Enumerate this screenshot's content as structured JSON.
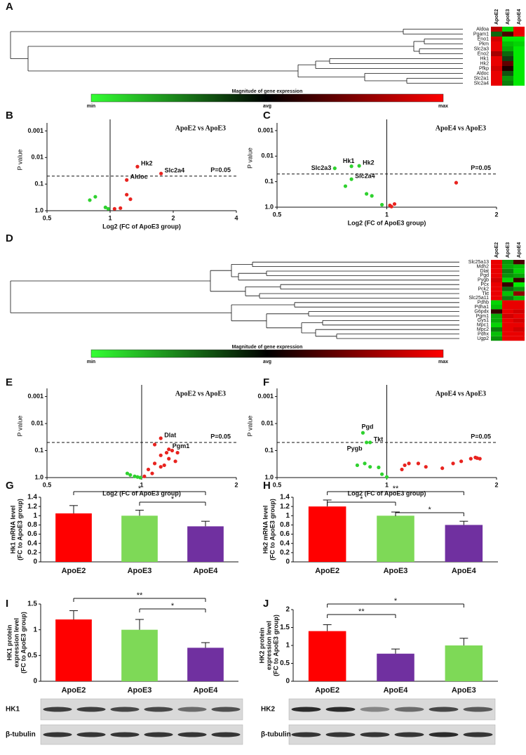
{
  "chart_data": [
    {
      "type": "heatmap",
      "panel": "A",
      "columns": [
        "ApoE2",
        "ApoE3",
        "ApoE4"
      ],
      "rows": [
        "Aldoa",
        "Pgam1",
        "Eno1",
        "Pkm",
        "Slc2a3",
        "Eno2",
        "Hk1",
        "Hk2",
        "Pfkp",
        "Aldoc",
        "Slc2a1",
        "Slc2a4"
      ],
      "values": [
        [
          0.7,
          -0.8,
          0.9
        ],
        [
          -0.3,
          0.2,
          0.9
        ],
        [
          0.8,
          -0.9,
          -0.9
        ],
        [
          0.9,
          -0.7,
          -0.8
        ],
        [
          0.9,
          -0.6,
          -0.9
        ],
        [
          0.6,
          -0.3,
          -0.9
        ],
        [
          0.9,
          -0.1,
          -0.9
        ],
        [
          0.9,
          0.3,
          -0.9
        ],
        [
          0.8,
          0,
          -0.9
        ],
        [
          0.9,
          -0.2,
          -0.9
        ],
        [
          0.9,
          -0.5,
          -0.9
        ],
        [
          0.9,
          -0.4,
          -0.9
        ]
      ],
      "colorbar": {
        "title": "Magnitude of gene expression",
        "labels": [
          "min",
          "avg",
          "max"
        ]
      }
    },
    {
      "type": "scatter",
      "panel": "B",
      "title": "ApoE2 vs ApoE3",
      "xlabel": "Log2 (FC of ApoE3 group)",
      "ylabel": "P value",
      "xscale": "log",
      "yscale": "log",
      "xlim": [
        0.5,
        4
      ],
      "xticks": [
        0.5,
        1,
        2,
        4
      ],
      "ylim": [
        1,
        0.0005
      ],
      "yticks": [
        0.001,
        0.01,
        0.1,
        {
          "value": 1,
          "label": "1.0"
        }
      ],
      "vline": 1,
      "threshold": {
        "value": 0.05,
        "label": "P=0.05"
      },
      "series": [
        {
          "color": "#e8231f",
          "x": [
            1.35,
            1.75,
            1.2,
            1.2,
            1.25,
            1.12,
            1.05
          ],
          "values": [
            0.022,
            0.04,
            0.07,
            0.25,
            0.37,
            0.8,
            0.85
          ],
          "labels": [
            "Hk2",
            "Slc2a4",
            "Aldoc",
            null,
            null,
            null,
            null
          ]
        },
        {
          "color": "#2fd12f",
          "x": [
            0.85,
            0.8,
            0.95,
            0.98
          ],
          "values": [
            0.3,
            0.4,
            0.75,
            0.85
          ]
        }
      ]
    },
    {
      "type": "scatter",
      "panel": "C",
      "title": "ApoE4 vs ApoE3",
      "xlabel": "Log2 (FC of ApoE3 group)",
      "ylabel": "P value",
      "xscale": "log",
      "yscale": "log",
      "xlim": [
        0.5,
        2
      ],
      "xticks": [
        0.5,
        1,
        2
      ],
      "ylim": [
        1,
        0.0005
      ],
      "yticks": [
        0.001,
        0.01,
        0.1,
        {
          "value": 1,
          "label": "1.0"
        }
      ],
      "vline": 1,
      "threshold": {
        "value": 0.05,
        "label": "P=0.05"
      },
      "series": [
        {
          "color": "#2fd12f",
          "x": [
            0.72,
            0.8,
            0.84,
            0.8,
            0.77,
            0.88,
            0.91,
            0.97
          ],
          "values": [
            0.03,
            0.025,
            0.024,
            0.08,
            0.15,
            0.3,
            0.36,
            0.8
          ],
          "labels": [
            "Slc2a3",
            "Hk1",
            "Hk2",
            "Slc2a4",
            null,
            null,
            null,
            null
          ]
        },
        {
          "color": "#e8231f",
          "x": [
            1.02,
            1.05,
            1.03,
            1.55
          ],
          "values": [
            0.85,
            0.75,
            0.95,
            0.11
          ]
        }
      ]
    },
    {
      "type": "heatmap",
      "panel": "D",
      "columns": [
        "ApoE2",
        "ApoE3",
        "ApoE4"
      ],
      "rows": [
        "Slc25a13",
        "Mdh2",
        "Dlat",
        "Pgd",
        "Pygb",
        "Pcx",
        "Pck2",
        "Tkt",
        "Slc25a11",
        "Pdhb",
        "Pdha1",
        "G6pdx",
        "Pgm1",
        "Gys1",
        "Mpc1",
        "Mpc2",
        "Pdhx",
        "Ugp2"
      ],
      "values": [
        [
          0.9,
          -0.5,
          0.2
        ],
        [
          0.9,
          -0.6,
          -0.7
        ],
        [
          0.9,
          -0.4,
          -0.8
        ],
        [
          0.9,
          -0.5,
          -0.6
        ],
        [
          0.8,
          -0.8,
          0.1
        ],
        [
          0.9,
          0.1,
          -0.9
        ],
        [
          0.9,
          -0.3,
          -0.5
        ],
        [
          0.9,
          -0.7,
          0.5
        ],
        [
          0.9,
          -0.4,
          -0.7
        ],
        [
          -0.8,
          0.9,
          0.9
        ],
        [
          -0.7,
          0.9,
          0.9
        ],
        [
          0.1,
          0.9,
          0.8
        ],
        [
          -0.6,
          0.8,
          0.9
        ],
        [
          -0.6,
          0.9,
          0.8
        ],
        [
          -0.8,
          0.9,
          0.9
        ],
        [
          -0.4,
          0.9,
          0.8
        ],
        [
          -0.7,
          0.9,
          0.9
        ],
        [
          -0.5,
          0.9,
          0.9
        ]
      ],
      "colorbar": {
        "title": "Magnitude of gene expression",
        "labels": [
          "min",
          "avg",
          "max"
        ]
      }
    },
    {
      "type": "scatter",
      "panel": "E",
      "title": "ApoE2 vs ApoE3",
      "xlabel": "Log2 (FC of ApoE3 group)",
      "ylabel": "P value",
      "xscale": "log",
      "yscale": "log",
      "xlim": [
        0.5,
        2
      ],
      "xticks": [
        0.5,
        1,
        2
      ],
      "ylim": [
        1,
        0.0005
      ],
      "yticks": [
        0.001,
        0.01,
        0.1,
        {
          "value": 1,
          "label": "1.0"
        }
      ],
      "vline": 1,
      "threshold": {
        "value": 0.05,
        "label": "P=0.05"
      },
      "series": [
        {
          "color": "#e8231f",
          "x": [
            1.15,
            1.22,
            1.1,
            1.15,
            1.2,
            1.25,
            1.3,
            1.22,
            1.28,
            1.1,
            1.05,
            1.15,
            1.08,
            1.18,
            1.02
          ],
          "values": [
            0.035,
            0.09,
            0.06,
            0.15,
            0.12,
            0.1,
            0.12,
            0.2,
            0.25,
            0.3,
            0.5,
            0.4,
            0.7,
            0.35,
            0.9
          ],
          "labels": [
            "Dlat",
            "Pgm1",
            null,
            null,
            null,
            null,
            null,
            null,
            null,
            null,
            null,
            null,
            null,
            null,
            null
          ]
        },
        {
          "color": "#2fd12f",
          "x": [
            0.9,
            0.92,
            0.95,
            0.97,
            0.99
          ],
          "values": [
            0.7,
            0.8,
            0.9,
            0.95,
            1
          ]
        }
      ]
    },
    {
      "type": "scatter",
      "panel": "F",
      "title": "ApoE4 vs ApoE3",
      "xlabel": "Log2 (FC of ApoE3 group)",
      "ylabel": "P value",
      "xscale": "log",
      "yscale": "log",
      "xlim": [
        0.5,
        2
      ],
      "xticks": [
        0.5,
        1,
        2
      ],
      "ylim": [
        1,
        0.0005
      ],
      "yticks": [
        0.001,
        0.01,
        0.1,
        {
          "value": 1,
          "label": "1.0"
        }
      ],
      "vline": 1,
      "threshold": {
        "value": 0.05,
        "label": "P=0.05"
      },
      "series": [
        {
          "color": "#2fd12f",
          "x": [
            0.86,
            0.9,
            0.88,
            0.83,
            0.87,
            0.9,
            0.95,
            0.97,
            1
          ],
          "values": [
            0.022,
            0.05,
            0.05,
            0.35,
            0.3,
            0.4,
            0.42,
            0.75,
            0.95
          ],
          "labels": [
            "Pgd",
            "Tkt",
            "Pygb",
            null,
            null,
            null,
            null,
            null,
            null
          ]
        },
        {
          "color": "#e8231f",
          "x": [
            1.1,
            1.12,
            1.15,
            1.22,
            1.28,
            1.42,
            1.52,
            1.6,
            1.7,
            1.75,
            1.8,
            1.77
          ],
          "values": [
            0.5,
            0.35,
            0.3,
            0.3,
            0.4,
            0.45,
            0.3,
            0.25,
            0.2,
            0.18,
            0.2,
            0.19
          ]
        }
      ]
    },
    {
      "type": "bar",
      "panel": "G",
      "ylabel": [
        "Hk1  mRNA level",
        "(FC to ApoE3 group)"
      ],
      "categories": [
        "ApoE2",
        "ApoE3",
        "ApoE4"
      ],
      "values": [
        1.05,
        1.0,
        0.77
      ],
      "errors": [
        0.17,
        0.12,
        0.11
      ],
      "colors": [
        "#ff0000",
        "#7ed957",
        "#7030a0"
      ],
      "ylim": [
        0,
        1.4
      ],
      "yticks": [
        0,
        0.2,
        0.4,
        0.6,
        0.8,
        1,
        1.2,
        1.4
      ],
      "significance": [
        {
          "from": 0,
          "to": 2,
          "label": "*"
        },
        {
          "from": 1,
          "to": 2,
          "label": "*"
        }
      ]
    },
    {
      "type": "bar",
      "panel": "H",
      "ylabel": [
        "Hk2  mRNA level",
        "(FC to ApoE3 group)"
      ],
      "categories": [
        "ApoE2",
        "ApoE3",
        "ApoE4"
      ],
      "values": [
        1.2,
        1.0,
        0.8
      ],
      "errors": [
        0.14,
        0.08,
        0.08
      ],
      "colors": [
        "#ff0000",
        "#7ed957",
        "#7030a0"
      ],
      "ylim": [
        0,
        1.4
      ],
      "yticks": [
        0,
        0.2,
        0.4,
        0.6,
        0.8,
        1,
        1.2,
        1.4
      ],
      "significance": [
        {
          "from": 0,
          "to": 2,
          "label": "**"
        },
        {
          "from": 0,
          "to": 1,
          "label": "*"
        },
        {
          "from": 1,
          "to": 2,
          "label": "*"
        }
      ]
    },
    {
      "type": "bar",
      "panel": "I",
      "ylabel": [
        "HK1 protein",
        "expression level",
        "(FC to ApoE3 group)"
      ],
      "categories": [
        "ApoE2",
        "ApoE3",
        "ApoE4"
      ],
      "values": [
        1.2,
        1.0,
        0.65
      ],
      "errors": [
        0.17,
        0.2,
        0.1
      ],
      "colors": [
        "#ff0000",
        "#7ed957",
        "#7030a0"
      ],
      "ylim": [
        0,
        1.5
      ],
      "yticks": [
        0,
        0.5,
        1,
        1.5
      ],
      "significance": [
        {
          "from": 0,
          "to": 2,
          "label": "**"
        },
        {
          "from": 1,
          "to": 2,
          "label": "*"
        }
      ]
    },
    {
      "type": "bar",
      "panel": "J",
      "ylabel": [
        "HK2 protein",
        "expression level",
        "(FC to ApoE3 group)"
      ],
      "categories": [
        "ApoE2",
        "ApoE4",
        "ApoE3"
      ],
      "values": [
        1.4,
        0.77,
        1.0
      ],
      "errors": [
        0.18,
        0.13,
        0.2
      ],
      "colors": [
        "#ff0000",
        "#7030a0",
        "#7ed957"
      ],
      "ylim": [
        0,
        2
      ],
      "yticks": [
        0,
        0.5,
        1,
        1.5,
        2
      ],
      "significance": [
        {
          "from": 0,
          "to": 2,
          "label": "*"
        },
        {
          "from": 0,
          "to": 1,
          "label": "**"
        }
      ]
    }
  ],
  "blots": [
    {
      "labels": [
        "HK1",
        "β-tubulin"
      ]
    },
    {
      "labels": [
        "HK2",
        "β-tubulin"
      ]
    }
  ]
}
